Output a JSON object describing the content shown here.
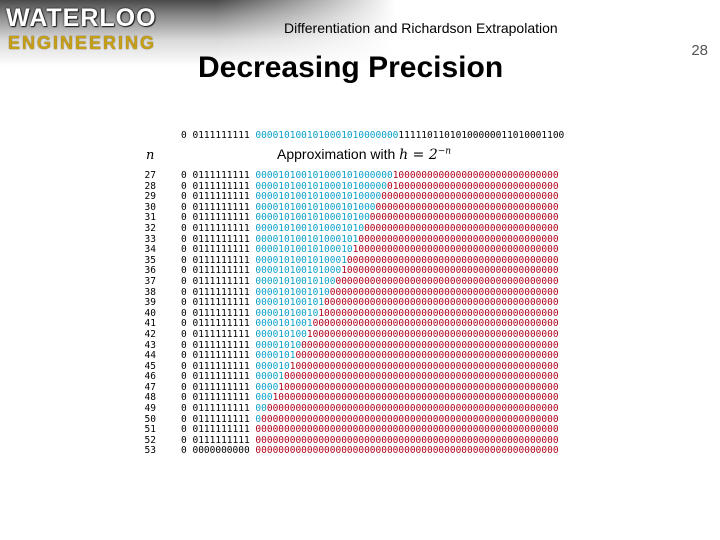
{
  "header": {
    "logo_line1": "WATERLOO",
    "logo_line2": "ENGINEERING",
    "slide_header": "Differentiation and Richardson Extrapolation",
    "slide_number": "28"
  },
  "title": "Decreasing Precision",
  "column_header_n": "n",
  "approx_label_prefix": "Approximation with ",
  "approx_label_math": "h = 2",
  "approx_label_exp": "−n",
  "reference": {
    "sign": "0",
    "exponent": "0111111111",
    "cyan": "0000101001010001010000000",
    "black": "11111011010100000011010001100"
  },
  "rows": [
    {
      "n": "27",
      "sign": "0",
      "exponent": "0111111111",
      "cyan": "000010100101000101000000",
      "red": "10000000000000000000000000000"
    },
    {
      "n": "28",
      "sign": "0",
      "exponent": "0111111111",
      "cyan": "00001010010100010100000",
      "red": "010000000000000000000000000000"
    },
    {
      "n": "29",
      "sign": "0",
      "exponent": "0111111111",
      "cyan": "0000101001010001010000",
      "red": "0000000000000000000000000000000"
    },
    {
      "n": "30",
      "sign": "0",
      "exponent": "0111111111",
      "cyan": "000010100101000101000",
      "red": "00000000000000000000000000000000"
    },
    {
      "n": "31",
      "sign": "0",
      "exponent": "0111111111",
      "cyan": "00001010010100010100",
      "red": "000000000000000000000000000000000"
    },
    {
      "n": "32",
      "sign": "0",
      "exponent": "0111111111",
      "cyan": "0000101001010001010",
      "red": "0000000000000000000000000000000000"
    },
    {
      "n": "33",
      "sign": "0",
      "exponent": "0111111111",
      "cyan": "000010100101000101",
      "red": "00000000000000000000000000000000000"
    },
    {
      "n": "34",
      "sign": "0",
      "exponent": "0111111111",
      "cyan": "00001010010100010",
      "red": "100000000000000000000000000000000000"
    },
    {
      "n": "35",
      "sign": "0",
      "exponent": "0111111111",
      "cyan": "0000101001010001",
      "red": "0000000000000000000000000000000000000"
    },
    {
      "n": "36",
      "sign": "0",
      "exponent": "0111111111",
      "cyan": "000010100101000",
      "red": "10000000000000000000000000000000000000"
    },
    {
      "n": "37",
      "sign": "0",
      "exponent": "0111111111",
      "cyan": "00001010010100",
      "red": "000000000000000000000000000000000000000"
    },
    {
      "n": "38",
      "sign": "0",
      "exponent": "0111111111",
      "cyan": "0000101001010",
      "red": "0000000000000000000000000000000000000000"
    },
    {
      "n": "39",
      "sign": "0",
      "exponent": "0111111111",
      "cyan": "000010100101",
      "red": "00000000000000000000000000000000000000000"
    },
    {
      "n": "40",
      "sign": "0",
      "exponent": "0111111111",
      "cyan": "00001010010",
      "red": "100000000000000000000000000000000000000000"
    },
    {
      "n": "41",
      "sign": "0",
      "exponent": "0111111111",
      "cyan": "0000101001",
      "red": "0000000000000000000000000000000000000000000"
    },
    {
      "n": "42",
      "sign": "0",
      "exponent": "0111111111",
      "cyan": "000010100",
      "red": "10000000000000000000000000000000000000000000"
    },
    {
      "n": "43",
      "sign": "0",
      "exponent": "0111111111",
      "cyan": "00001010",
      "red": "000000000000000000000000000000000000000000000"
    },
    {
      "n": "44",
      "sign": "0",
      "exponent": "0111111111",
      "cyan": "0000101",
      "red": "0000000000000000000000000000000000000000000000"
    },
    {
      "n": "45",
      "sign": "0",
      "exponent": "0111111111",
      "cyan": "000010",
      "red": "10000000000000000000000000000000000000000000000"
    },
    {
      "n": "46",
      "sign": "0",
      "exponent": "0111111111",
      "cyan": "00001",
      "red": "000000000000000000000000000000000000000000000000"
    },
    {
      "n": "47",
      "sign": "0",
      "exponent": "0111111111",
      "cyan": "0000",
      "red": "1000000000000000000000000000000000000000000000000"
    },
    {
      "n": "48",
      "sign": "0",
      "exponent": "0111111111",
      "cyan": "000",
      "red": "10000000000000000000000000000000000000000000000000"
    },
    {
      "n": "49",
      "sign": "0",
      "exponent": "0111111111",
      "cyan": "00",
      "red": "000000000000000000000000000000000000000000000000000"
    },
    {
      "n": "50",
      "sign": "0",
      "exponent": "0111111111",
      "cyan": "0",
      "red": "0000000000000000000000000000000000000000000000000000"
    },
    {
      "n": "51",
      "sign": "0",
      "exponent": "0111111111",
      "cyan": "",
      "red": "00000000000000000000000000000000000000000000000000000"
    },
    {
      "n": "52",
      "sign": "0",
      "exponent": "0111111111",
      "cyan": "",
      "red": "00000000000000000000000000000000000000000000000000000"
    },
    {
      "n": "53",
      "sign": "0",
      "exponent": "0000000000",
      "cyan": "",
      "red": "00000000000000000000000000000000000000000000000000000"
    }
  ]
}
